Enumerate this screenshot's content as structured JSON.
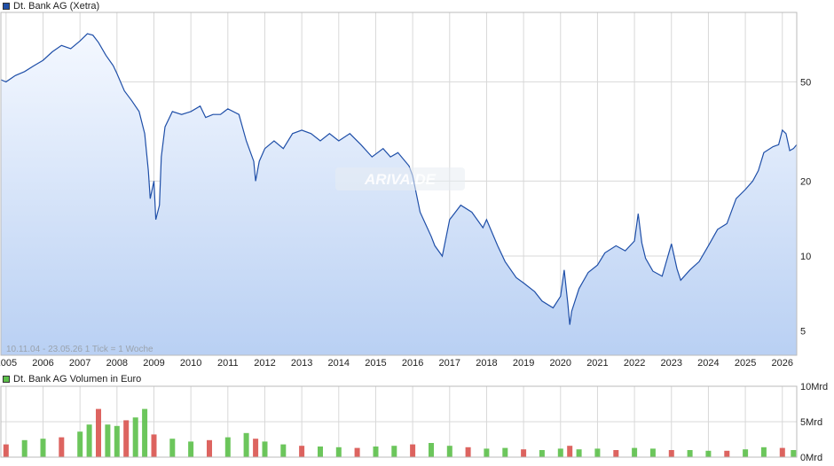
{
  "legend": {
    "price_label": "Dt. Bank AG (Xetra)",
    "volume_label": "Dt. Bank AG Volumen in Euro"
  },
  "range_note": "10.11.04 - 23.05.26   1 Tick = 1 Woche",
  "watermark": "ARIVA.DE",
  "colors": {
    "price_line": "#1f4fa8",
    "area_top": "#f4f8ff",
    "area_bottom": "#b9d0f3",
    "volume_up": "#5cc04a",
    "volume_down": "#d9534f",
    "grid": "#d8d8d8"
  },
  "chart_data": [
    {
      "type": "area",
      "title": "Dt. Bank AG (Xetra)",
      "y_scale": "log",
      "y_ticks": [
        5,
        10,
        20,
        50
      ],
      "x_ticks": [
        "2005",
        "2006",
        "2007",
        "2008",
        "2009",
        "2010",
        "2011",
        "2012",
        "2013",
        "2014",
        "2015",
        "2016",
        "2017",
        "2018",
        "2019",
        "2020",
        "2021",
        "2022",
        "2023",
        "2024",
        "2025",
        "2026"
      ],
      "xlim": [
        2004.86,
        2026.39
      ],
      "ylim": [
        4.0,
        95
      ],
      "grid": true,
      "series": [
        {
          "name": "Dt. Bank AG (Xetra)",
          "x": [
            2004.86,
            2005.0,
            2005.25,
            2005.5,
            2005.75,
            2006.0,
            2006.25,
            2006.5,
            2006.75,
            2007.0,
            2007.2,
            2007.35,
            2007.5,
            2007.7,
            2007.9,
            2008.0,
            2008.2,
            2008.4,
            2008.6,
            2008.75,
            2008.8,
            2008.85,
            2008.9,
            2009.0,
            2009.05,
            2009.15,
            2009.2,
            2009.3,
            2009.5,
            2009.75,
            2010.0,
            2010.25,
            2010.4,
            2010.6,
            2010.8,
            2011.0,
            2011.3,
            2011.5,
            2011.7,
            2011.75,
            2011.85,
            2012.0,
            2012.25,
            2012.5,
            2012.75,
            2013.0,
            2013.25,
            2013.5,
            2013.75,
            2014.0,
            2014.3,
            2014.6,
            2014.9,
            2015.2,
            2015.4,
            2015.6,
            2015.9,
            2016.0,
            2016.2,
            2016.5,
            2016.6,
            2016.8,
            2017.0,
            2017.3,
            2017.6,
            2017.9,
            2018.0,
            2018.3,
            2018.5,
            2018.8,
            2019.0,
            2019.3,
            2019.5,
            2019.8,
            2020.0,
            2020.1,
            2020.2,
            2020.25,
            2020.3,
            2020.5,
            2020.75,
            2021.0,
            2021.2,
            2021.5,
            2021.75,
            2022.0,
            2022.1,
            2022.2,
            2022.3,
            2022.5,
            2022.75,
            2023.0,
            2023.15,
            2023.25,
            2023.5,
            2023.75,
            2024.0,
            2024.25,
            2024.5,
            2024.75,
            2025.0,
            2025.2,
            2025.35,
            2025.5,
            2025.75,
            2025.9,
            2026.0,
            2026.1,
            2026.2,
            2026.3,
            2026.39
          ],
          "y": [
            51,
            50,
            53,
            55,
            58,
            61,
            66,
            70,
            68,
            73,
            78,
            77,
            72,
            64,
            58,
            54,
            46,
            42,
            38,
            31,
            26,
            22,
            17,
            20,
            14,
            16,
            25,
            33,
            38,
            37,
            38,
            40,
            36,
            37,
            37,
            39,
            37,
            29,
            24,
            20,
            24,
            27,
            29,
            27,
            31,
            32,
            31,
            29,
            31,
            29,
            31,
            28,
            25,
            27,
            25,
            26,
            23,
            21,
            15,
            12,
            11,
            10,
            14,
            16,
            15,
            13,
            14,
            11,
            9.5,
            8.2,
            7.8,
            7.2,
            6.6,
            6.2,
            6.9,
            8.8,
            6.4,
            5.3,
            6.0,
            7.4,
            8.6,
            9.2,
            10.3,
            11.0,
            10.5,
            11.5,
            14.8,
            11.3,
            9.8,
            8.7,
            8.3,
            11.2,
            8.9,
            8.0,
            8.8,
            9.5,
            11.0,
            12.8,
            13.5,
            17.0,
            18.5,
            20.0,
            22.0,
            26.0,
            27.5,
            28.0,
            32.0,
            31.0,
            26.5,
            27.0,
            28.0
          ]
        }
      ]
    },
    {
      "type": "bar",
      "title": "Dt. Bank AG Volumen in Euro",
      "y_ticks": [
        "0Mrd",
        "5Mrd",
        "10Mrd"
      ],
      "ylim": [
        0,
        10
      ],
      "xlim": [
        2004.86,
        2026.39
      ],
      "grid": true,
      "series": [
        {
          "name": "Dt. Bank AG Volumen in Euro",
          "x": [
            2005.0,
            2005.5,
            2006.0,
            2006.5,
            2007.0,
            2007.25,
            2007.5,
            2007.75,
            2008.0,
            2008.25,
            2008.5,
            2008.75,
            2009.0,
            2009.5,
            2010.0,
            2010.5,
            2011.0,
            2011.5,
            2011.75,
            2012.0,
            2012.5,
            2013.0,
            2013.5,
            2014.0,
            2014.5,
            2015.0,
            2015.5,
            2016.0,
            2016.5,
            2017.0,
            2017.5,
            2018.0,
            2018.5,
            2019.0,
            2019.5,
            2020.0,
            2020.25,
            2020.5,
            2021.0,
            2021.5,
            2022.0,
            2022.5,
            2023.0,
            2023.5,
            2024.0,
            2024.5,
            2025.0,
            2025.5,
            2026.0,
            2026.3
          ],
          "values": [
            1.8,
            2.4,
            2.6,
            2.8,
            3.6,
            4.6,
            6.8,
            4.6,
            4.4,
            5.2,
            5.6,
            6.8,
            3.2,
            2.6,
            2.2,
            2.4,
            2.8,
            3.4,
            2.6,
            2.2,
            1.8,
            1.6,
            1.5,
            1.4,
            1.3,
            1.5,
            1.6,
            1.8,
            2.0,
            1.6,
            1.4,
            1.2,
            1.3,
            1.1,
            1.0,
            1.2,
            1.6,
            1.1,
            1.2,
            1.0,
            1.3,
            1.2,
            1.0,
            1.0,
            0.9,
            0.9,
            1.1,
            1.4,
            1.3,
            1.0
          ]
        }
      ]
    }
  ]
}
